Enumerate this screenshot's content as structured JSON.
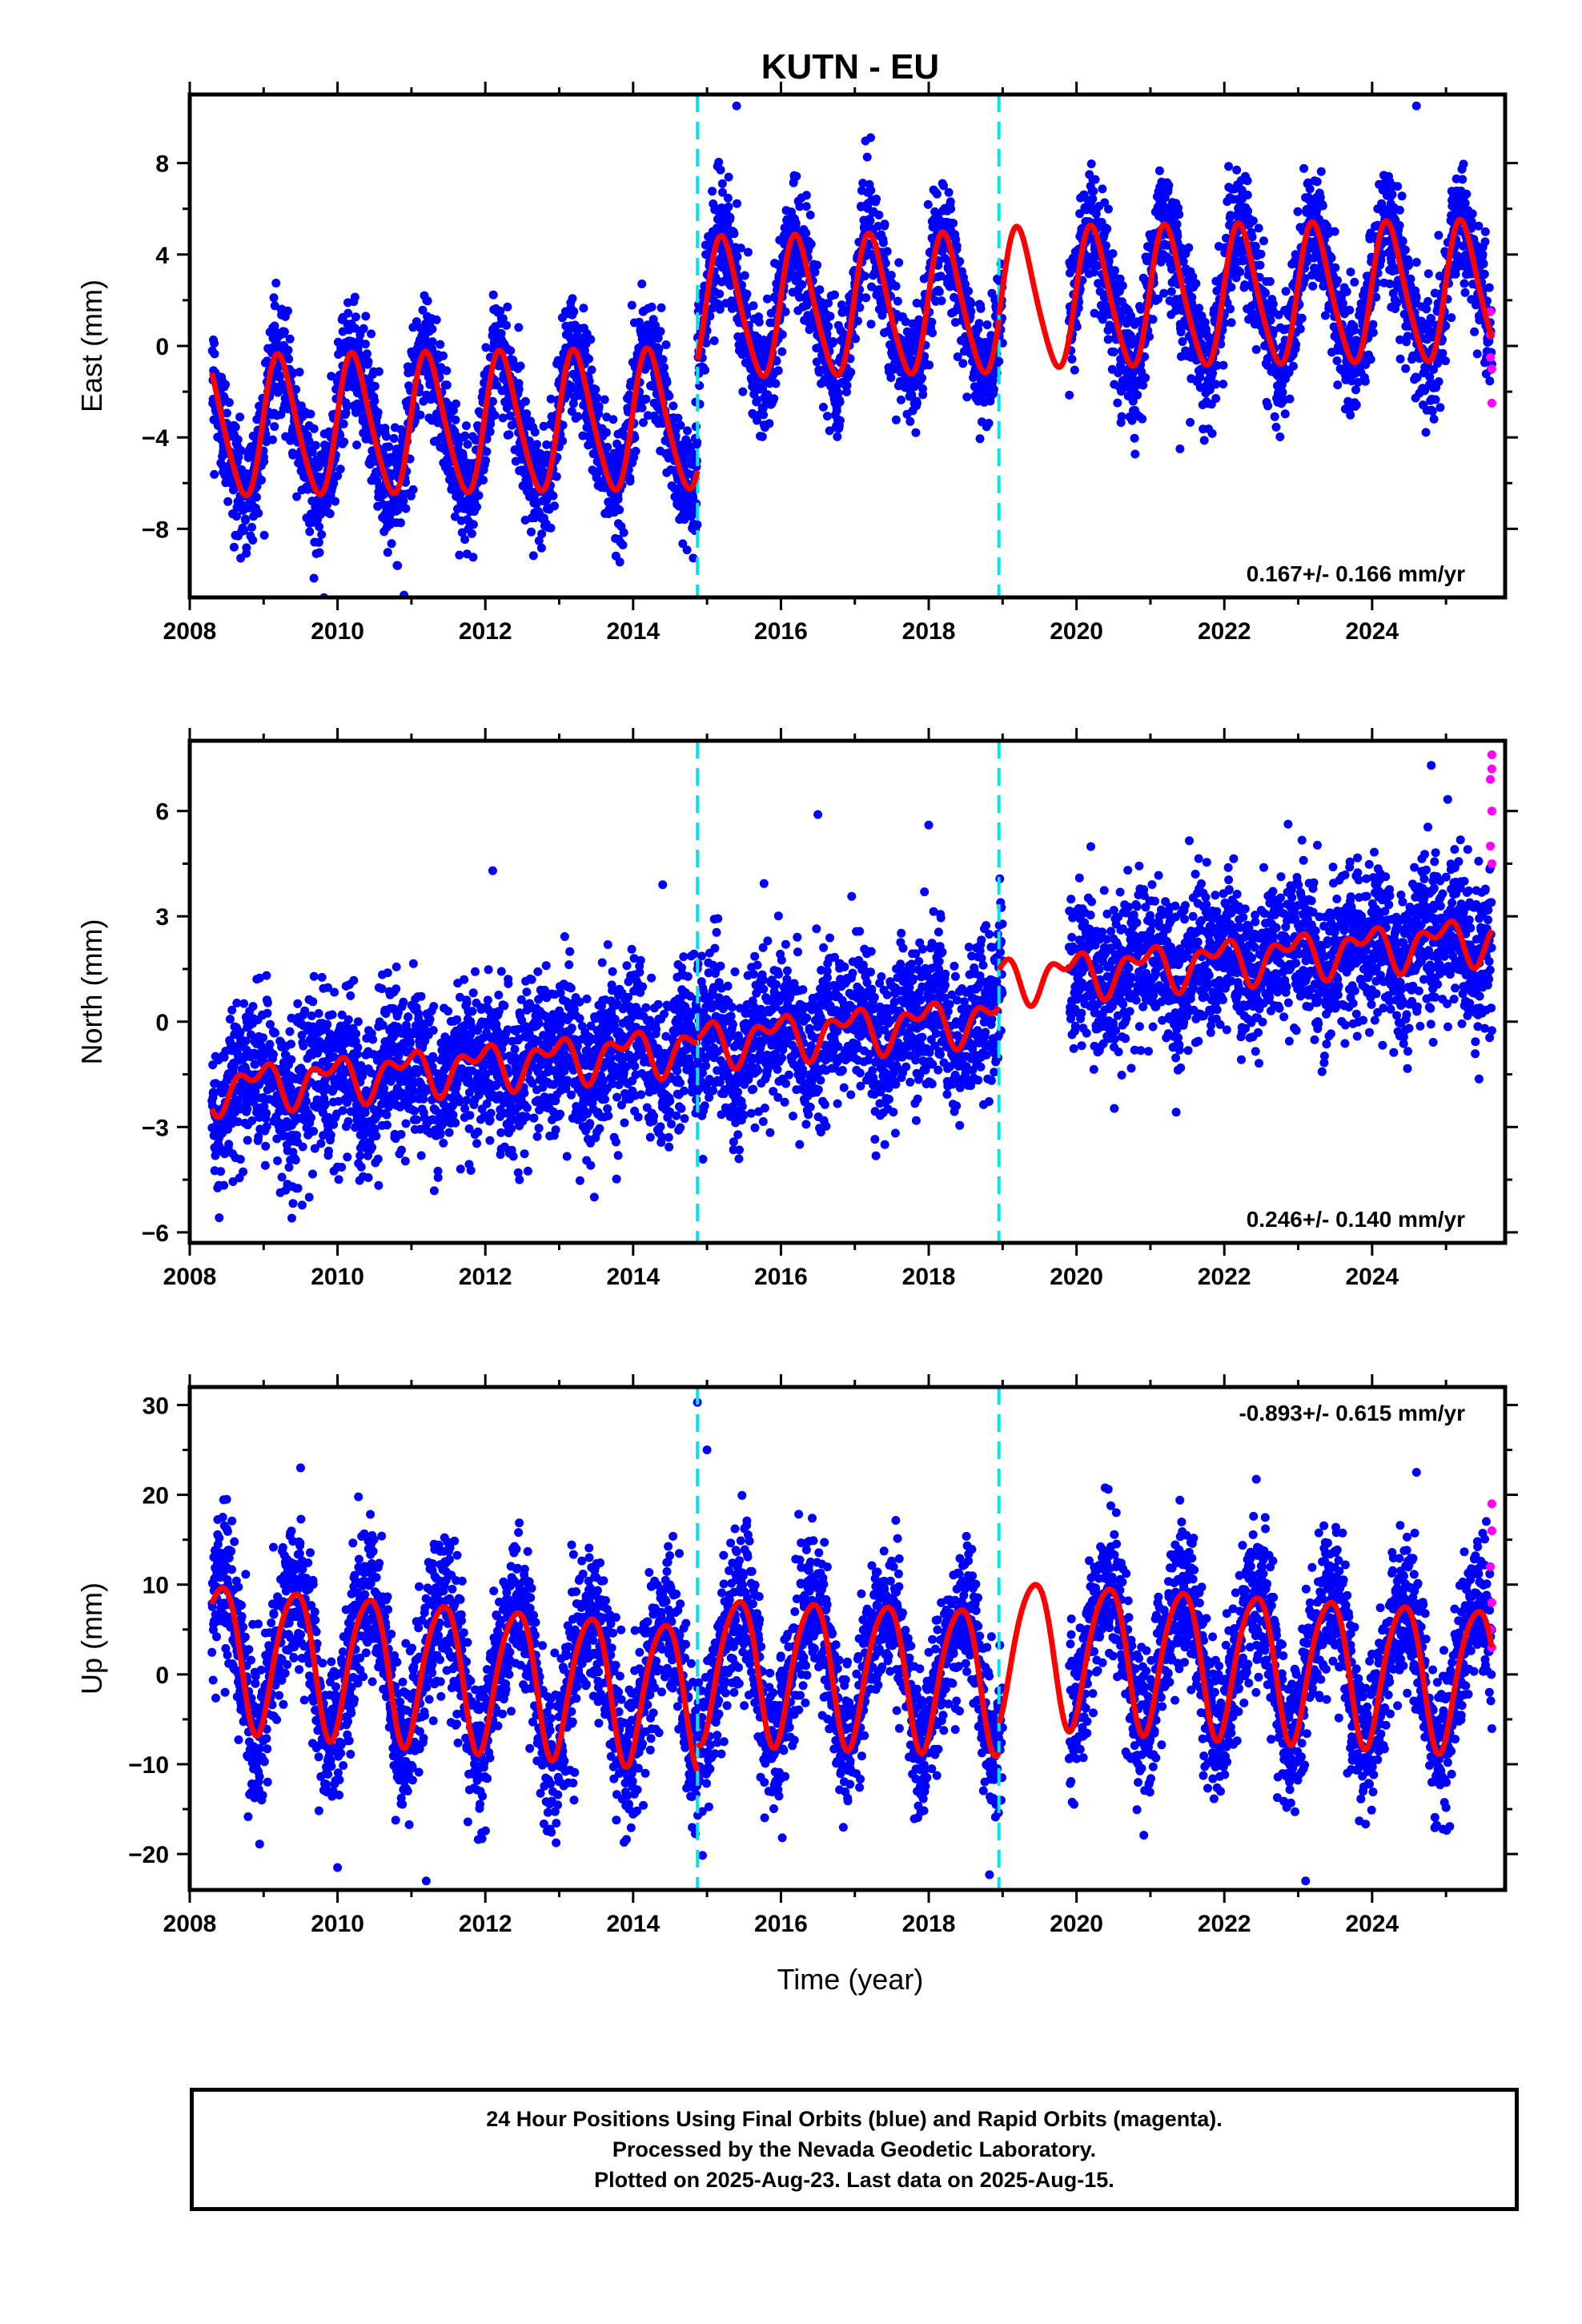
{
  "title": "KUTN - EU",
  "xlabel": "Time (year)",
  "colors": {
    "final_orbits": "#0000ff",
    "rapid_orbits": "#ff00ff",
    "model": "#ff0000",
    "offsets": "#00e5ee"
  },
  "chart_data": [
    {
      "type": "scatter",
      "component": "East",
      "ylabel": "East (mm)",
      "xlim": [
        2008,
        2025.8
      ],
      "ylim": [
        -11,
        11
      ],
      "xticks": [
        2008,
        2010,
        2012,
        2014,
        2016,
        2018,
        2020,
        2022,
        2024
      ],
      "yticks": [
        -8,
        -4,
        0,
        4,
        8
      ],
      "ytick_labels": [
        "−8",
        "−4",
        "0",
        "4",
        "8"
      ],
      "rate": "0.167+/- 0.166 mm/yr",
      "offsets": [
        2014.87,
        2018.95
      ],
      "model": {
        "mean_segments": [
          {
            "start": 2008.3,
            "end": 2014.87,
            "y0": -3.6,
            "slope": 0.05
          },
          {
            "start": 2014.87,
            "end": 2018.95,
            "y0": 1.6,
            "slope": 0.05
          },
          {
            "start": 2018.95,
            "end": 2025.62,
            "y0": 2.0,
            "slope": 0.05
          }
        ],
        "annual_amplitude": 3.0,
        "annual_phase_deg": 10,
        "semiannual_amplitude": 0.4
      },
      "scatter_noise": 1.3,
      "outliers": [
        [
          2008.6,
          -8.8
        ],
        [
          2010.9,
          -10.9
        ],
        [
          2015.4,
          10.5
        ],
        [
          2024.6,
          10.5
        ],
        [
          2021.4,
          -4.5
        ]
      ],
      "rapid_points": [
        [
          2025.6,
          0.5
        ],
        [
          2025.6,
          -0.5
        ],
        [
          2025.62,
          -1.0
        ],
        [
          2025.62,
          -2.5
        ],
        [
          2025.6,
          1.5
        ]
      ],
      "gaps": [
        [
          2019.0,
          2019.9
        ]
      ]
    },
    {
      "type": "scatter",
      "component": "North",
      "ylabel": "North (mm)",
      "xlim": [
        2008,
        2025.8
      ],
      "ylim": [
        -6.3,
        8
      ],
      "xticks": [
        2008,
        2010,
        2012,
        2014,
        2016,
        2018,
        2020,
        2022,
        2024
      ],
      "yticks": [
        -6,
        -3,
        0,
        3,
        6
      ],
      "ytick_labels": [
        "−6",
        "−3",
        "0",
        "3",
        "6"
      ],
      "rate": "0.246+/- 0.140 mm/yr",
      "offsets": [
        2014.87,
        2018.95
      ],
      "model": {
        "mean_segments": [
          {
            "start": 2008.3,
            "end": 2014.87,
            "y0": -1.9,
            "slope": 0.18
          },
          {
            "start": 2014.87,
            "end": 2018.95,
            "y0": -0.6,
            "slope": 0.18
          },
          {
            "start": 2018.95,
            "end": 2025.62,
            "y0": 1.2,
            "slope": 0.18
          }
        ],
        "annual_amplitude": 0.5,
        "annual_phase_deg": 120,
        "semiannual_amplitude": 0.35
      },
      "scatter_noise": 1.1,
      "outliers": [
        [
          2016.5,
          5.9
        ],
        [
          2018.0,
          5.6
        ],
        [
          2012.1,
          4.3
        ],
        [
          2024.8,
          7.3
        ],
        [
          2014.4,
          3.9
        ]
      ],
      "rapid_points": [
        [
          2025.62,
          7.6
        ],
        [
          2025.62,
          7.2
        ],
        [
          2025.6,
          6.9
        ],
        [
          2025.62,
          6.0
        ],
        [
          2025.6,
          5.0
        ],
        [
          2025.62,
          4.5
        ]
      ],
      "gaps": [
        [
          2019.0,
          2019.9
        ]
      ]
    },
    {
      "type": "scatter",
      "component": "Up",
      "ylabel": "Up (mm)",
      "xlim": [
        2008,
        2025.8
      ],
      "ylim": [
        -24,
        32
      ],
      "xticks": [
        2008,
        2010,
        2012,
        2014,
        2016,
        2018,
        2020,
        2022,
        2024
      ],
      "yticks": [
        -20,
        -10,
        0,
        10,
        20,
        30
      ],
      "ytick_labels": [
        "−20",
        "−10",
        "0",
        "10",
        "20",
        "30"
      ],
      "rate": "-0.893+/- 0.615 mm/yr",
      "offsets": [
        2014.87,
        2018.95
      ],
      "model": {
        "mean_segments": [
          {
            "start": 2008.3,
            "end": 2014.87,
            "y0": 2.5,
            "slope": -0.7
          },
          {
            "start": 2014.87,
            "end": 2018.95,
            "y0": 1.0,
            "slope": -0.3
          },
          {
            "start": 2018.95,
            "end": 2025.62,
            "y0": 3.0,
            "slope": -0.5
          }
        ],
        "annual_amplitude": 8.0,
        "annual_phase_deg": -60,
        "semiannual_amplitude": 1.0
      },
      "scatter_noise": 4.2,
      "outliers": [
        [
          2014.87,
          30.3
        ],
        [
          2015.0,
          25.0
        ],
        [
          2009.5,
          23.0
        ],
        [
          2011.2,
          -23.0
        ],
        [
          2023.1,
          -23.0
        ],
        [
          2024.6,
          22.5
        ],
        [
          2010.0,
          -21.5
        ]
      ],
      "rapid_points": [
        [
          2025.62,
          19.0
        ],
        [
          2025.62,
          16.0
        ],
        [
          2025.6,
          12.0
        ],
        [
          2025.62,
          8.0
        ],
        [
          2025.6,
          5.0
        ],
        [
          2025.62,
          3.0
        ]
      ],
      "gaps": [
        [
          2019.0,
          2019.9
        ]
      ]
    }
  ],
  "caption": [
    "24 Hour Positions Using Final Orbits (blue) and Rapid Orbits (magenta).",
    "Processed by the Nevada Geodetic Laboratory.",
    "Plotted on 2025-Aug-23. Last data on 2025-Aug-15."
  ]
}
